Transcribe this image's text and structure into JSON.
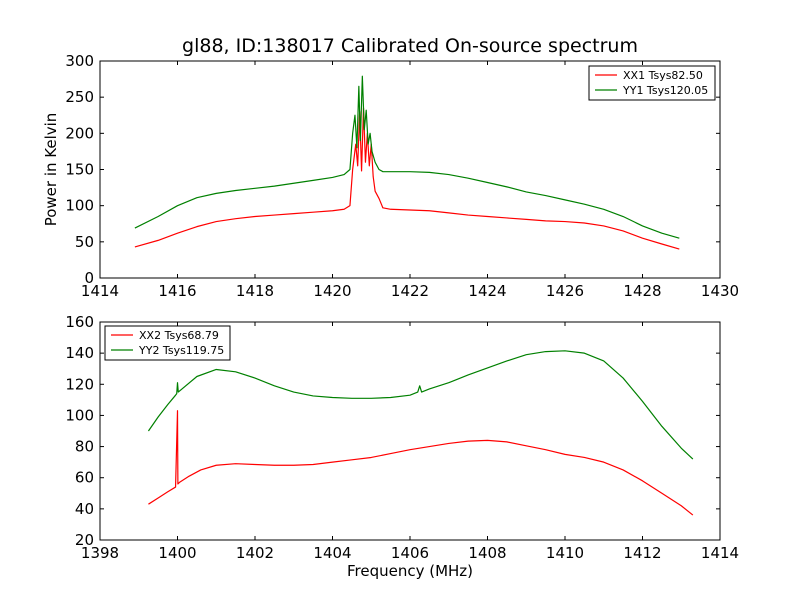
{
  "figure": {
    "title": "gl88, ID:138017 Calibrated On-source spectrum"
  },
  "colors": {
    "xx": "#ff0000",
    "yy": "#008000",
    "axes": "#000000",
    "background": "#ffffff"
  },
  "chart_data": [
    {
      "type": "line",
      "title": "gl88, ID:138017 Calibrated On-source spectrum",
      "xlabel": "",
      "ylabel": "Power in Kelvin",
      "xlim": [
        1414,
        1430
      ],
      "ylim": [
        0,
        300
      ],
      "xticks": [
        1414,
        1416,
        1418,
        1420,
        1422,
        1424,
        1426,
        1428,
        1430
      ],
      "yticks": [
        0,
        50,
        100,
        150,
        200,
        250,
        300
      ],
      "grid": false,
      "legend": "top-right",
      "series": [
        {
          "name": "XX1 Tsys82.50",
          "color": "#ff0000",
          "x": [
            1414.9,
            1415.5,
            1416.0,
            1416.5,
            1417.0,
            1417.5,
            1418.0,
            1418.5,
            1419.0,
            1419.5,
            1420.0,
            1420.3,
            1420.45,
            1420.52,
            1420.6,
            1420.65,
            1420.7,
            1420.75,
            1420.8,
            1420.85,
            1420.9,
            1420.95,
            1421.0,
            1421.05,
            1421.1,
            1421.2,
            1421.3,
            1421.5,
            1422.0,
            1422.5,
            1423.0,
            1423.5,
            1424.0,
            1424.5,
            1425.0,
            1425.5,
            1426.0,
            1426.5,
            1427.0,
            1427.5,
            1428.0,
            1428.5,
            1428.95
          ],
          "y": [
            43,
            52,
            62,
            71,
            78,
            82,
            85,
            87,
            89,
            91,
            93,
            95,
            100,
            150,
            185,
            155,
            230,
            148,
            235,
            160,
            200,
            155,
            185,
            140,
            120,
            110,
            97,
            95,
            94,
            93,
            90,
            87,
            85,
            83,
            81,
            79,
            78,
            76,
            72,
            65,
            55,
            47,
            40
          ]
        },
        {
          "name": "YY1 Tsys120.05",
          "color": "#008000",
          "x": [
            1414.9,
            1415.5,
            1416.0,
            1416.5,
            1417.0,
            1417.5,
            1418.0,
            1418.5,
            1419.0,
            1419.5,
            1420.0,
            1420.3,
            1420.45,
            1420.52,
            1420.58,
            1420.63,
            1420.68,
            1420.72,
            1420.77,
            1420.82,
            1420.87,
            1420.92,
            1420.97,
            1421.02,
            1421.1,
            1421.2,
            1421.3,
            1421.5,
            1422.0,
            1422.5,
            1423.0,
            1423.5,
            1424.0,
            1424.5,
            1425.0,
            1425.5,
            1426.0,
            1426.5,
            1427.0,
            1427.5,
            1428.0,
            1428.5,
            1428.95
          ],
          "y": [
            69,
            85,
            100,
            111,
            117,
            121,
            124,
            127,
            131,
            135,
            139,
            143,
            150,
            200,
            225,
            180,
            265,
            190,
            279,
            205,
            232,
            185,
            200,
            175,
            160,
            150,
            147,
            147,
            147,
            146,
            143,
            138,
            132,
            126,
            119,
            114,
            108,
            102,
            95,
            85,
            72,
            62,
            55
          ]
        }
      ]
    },
    {
      "type": "line",
      "title": "",
      "xlabel": "Frequency (MHz)",
      "ylabel": "",
      "xlim": [
        1398,
        1414
      ],
      "ylim": [
        20,
        160
      ],
      "xticks": [
        1398,
        1400,
        1402,
        1404,
        1406,
        1408,
        1410,
        1412,
        1414
      ],
      "yticks": [
        20,
        40,
        60,
        80,
        100,
        120,
        140,
        160
      ],
      "grid": false,
      "legend": "top-left",
      "series": [
        {
          "name": "XX2 Tsys68.79",
          "color": "#ff0000",
          "x": [
            1399.25,
            1399.5,
            1399.75,
            1399.95,
            1400.0,
            1400.01,
            1400.05,
            1400.3,
            1400.6,
            1401.0,
            1401.5,
            1402.0,
            1402.5,
            1403.0,
            1403.5,
            1404.0,
            1404.5,
            1405.0,
            1405.5,
            1406.0,
            1406.5,
            1407.0,
            1407.5,
            1408.0,
            1408.5,
            1409.0,
            1409.5,
            1410.0,
            1410.5,
            1411.0,
            1411.5,
            1412.0,
            1412.5,
            1413.0,
            1413.3
          ],
          "y": [
            43,
            47,
            51,
            54,
            103,
            56,
            57,
            61,
            65,
            68,
            69,
            68.5,
            68,
            68,
            68.5,
            70,
            71.5,
            73,
            75.5,
            78,
            80,
            82,
            83.5,
            84,
            83,
            80.5,
            78,
            75,
            73,
            70,
            65,
            58,
            50,
            42,
            36
          ]
        },
        {
          "name": "YY2 Tsys119.75",
          "color": "#008000",
          "x": [
            1399.25,
            1399.5,
            1399.75,
            1399.95,
            1399.98,
            1400.0,
            1400.02,
            1400.5,
            1401.0,
            1401.5,
            1402.0,
            1402.5,
            1403.0,
            1403.5,
            1404.0,
            1404.5,
            1405.0,
            1405.5,
            1406.0,
            1406.2,
            1406.25,
            1406.3,
            1406.5,
            1407.0,
            1407.5,
            1408.0,
            1408.5,
            1409.0,
            1409.5,
            1410.0,
            1410.5,
            1411.0,
            1411.5,
            1412.0,
            1412.5,
            1413.0,
            1413.3
          ],
          "y": [
            90,
            99,
            107,
            113,
            114,
            121,
            115,
            125,
            129.5,
            128,
            124,
            119,
            115,
            112.5,
            111.5,
            111,
            111,
            111.5,
            113,
            115,
            119,
            115,
            117,
            121,
            126,
            130.5,
            135,
            139,
            141,
            141.5,
            140,
            135,
            124,
            109,
            93,
            79,
            72
          ]
        }
      ]
    }
  ]
}
